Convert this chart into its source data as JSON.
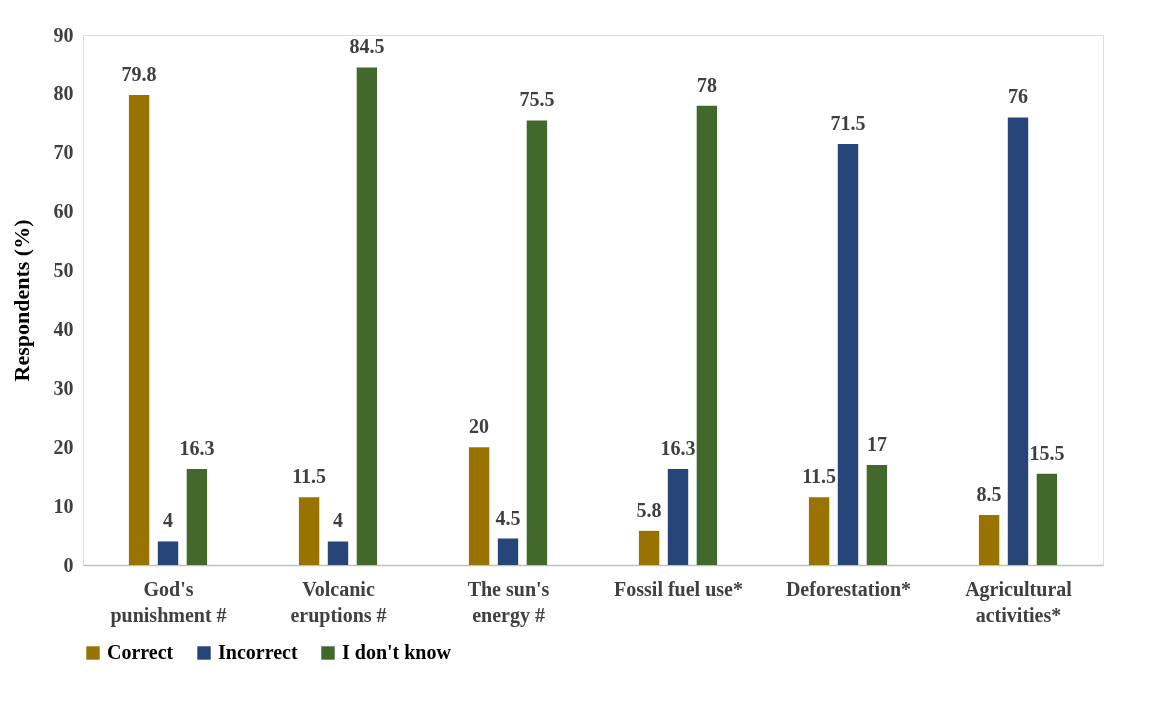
{
  "chart_data": {
    "type": "bar",
    "ylabel": "Respondents (%)",
    "categories": [
      "God's\npunishment #",
      "Volcanic\neruptions #",
      "The sun's\nenergy #",
      "Fossil fuel use*",
      "Deforestation*",
      "Agricultural\nactivities*"
    ],
    "series": [
      {
        "name": "Correct",
        "color": "#997300",
        "values": [
          79.8,
          11.5,
          20,
          5.8,
          11.5,
          8.5
        ]
      },
      {
        "name": "Incorrect",
        "color": "#264478",
        "values": [
          4,
          4,
          4.5,
          16.3,
          71.5,
          76
        ]
      },
      {
        "name": "I don't know",
        "color": "#43682b",
        "values": [
          16.3,
          84.5,
          75.5,
          78,
          17,
          15.5
        ]
      }
    ],
    "ylim": [
      0,
      90
    ],
    "yticks": [
      0,
      10,
      20,
      30,
      40,
      50,
      60,
      70,
      80,
      90
    ],
    "data_labels": true,
    "grid": false,
    "legend": "bottom"
  }
}
